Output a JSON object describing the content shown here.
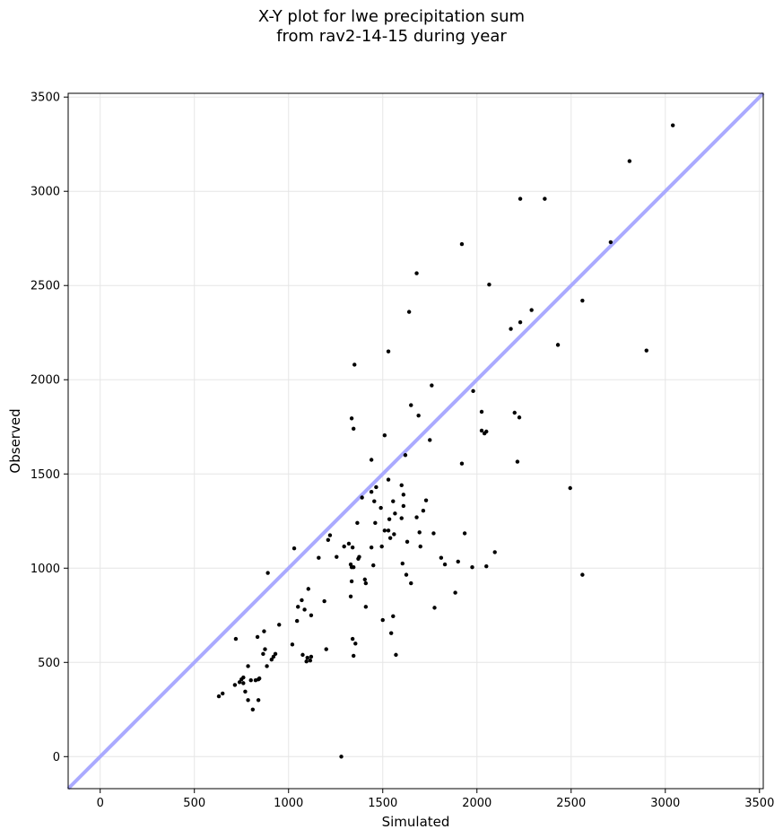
{
  "chart_data": {
    "type": "scatter",
    "title_lines": [
      "X-Y plot for lwe precipitation sum",
      "from rav2-14-15 during year"
    ],
    "xlabel": "Simulated",
    "ylabel": "Observed",
    "xlim": [
      -170,
      3520
    ],
    "ylim": [
      -170,
      3520
    ],
    "xticks": [
      0,
      500,
      1000,
      1500,
      2000,
      2500,
      3000,
      3500
    ],
    "yticks": [
      0,
      500,
      1000,
      1500,
      2000,
      2500,
      3000,
      3500
    ],
    "grid": true,
    "reference_line": {
      "from": [
        -170,
        -170
      ],
      "to": [
        3520,
        3520
      ],
      "color": "#aaaaff"
    },
    "point_color": "#000000",
    "points": [
      [
        3040,
        3350
      ],
      [
        2810,
        3160
      ],
      [
        2230,
        2960
      ],
      [
        2360,
        2960
      ],
      [
        2710,
        2730
      ],
      [
        1920,
        2720
      ],
      [
        1680,
        2565
      ],
      [
        2065,
        2505
      ],
      [
        1640,
        2360
      ],
      [
        2290,
        2370
      ],
      [
        2230,
        2305
      ],
      [
        2180,
        2270
      ],
      [
        2560,
        2420
      ],
      [
        2430,
        2185
      ],
      [
        2900,
        2155
      ],
      [
        1530,
        2150
      ],
      [
        1350,
        2080
      ],
      [
        1760,
        1970
      ],
      [
        1980,
        1940
      ],
      [
        1650,
        1865
      ],
      [
        2200,
        1825
      ],
      [
        2025,
        1830
      ],
      [
        2225,
        1800
      ],
      [
        1690,
        1810
      ],
      [
        1335,
        1795
      ],
      [
        1345,
        1740
      ],
      [
        2025,
        1730
      ],
      [
        2040,
        1715
      ],
      [
        2050,
        1725
      ],
      [
        1510,
        1705
      ],
      [
        1750,
        1680
      ],
      [
        1620,
        1600
      ],
      [
        1440,
        1575
      ],
      [
        1920,
        1555
      ],
      [
        2215,
        1565
      ],
      [
        1530,
        1470
      ],
      [
        2495,
        1425
      ],
      [
        1465,
        1430
      ],
      [
        1600,
        1440
      ],
      [
        1440,
        1405
      ],
      [
        1610,
        1390
      ],
      [
        1555,
        1355
      ],
      [
        1390,
        1375
      ],
      [
        1455,
        1355
      ],
      [
        1730,
        1360
      ],
      [
        1610,
        1330
      ],
      [
        1490,
        1320
      ],
      [
        1715,
        1305
      ],
      [
        1565,
        1290
      ],
      [
        1680,
        1270
      ],
      [
        1600,
        1265
      ],
      [
        1535,
        1260
      ],
      [
        1365,
        1240
      ],
      [
        1460,
        1240
      ],
      [
        1510,
        1200
      ],
      [
        1530,
        1200
      ],
      [
        1560,
        1180
      ],
      [
        1695,
        1190
      ],
      [
        1770,
        1185
      ],
      [
        1935,
        1185
      ],
      [
        1220,
        1175
      ],
      [
        1540,
        1160
      ],
      [
        1210,
        1150
      ],
      [
        1630,
        1140
      ],
      [
        1320,
        1130
      ],
      [
        1295,
        1115
      ],
      [
        1440,
        1110
      ],
      [
        1700,
        1115
      ],
      [
        1495,
        1115
      ],
      [
        1340,
        1110
      ],
      [
        1030,
        1105
      ],
      [
        2095,
        1085
      ],
      [
        1375,
        1060
      ],
      [
        1370,
        1050
      ],
      [
        1255,
        1060
      ],
      [
        1160,
        1055
      ],
      [
        1810,
        1055
      ],
      [
        1900,
        1035
      ],
      [
        1830,
        1020
      ],
      [
        1330,
        1020
      ],
      [
        1450,
        1015
      ],
      [
        1605,
        1025
      ],
      [
        1345,
        1005
      ],
      [
        1335,
        1005
      ],
      [
        1975,
        1005
      ],
      [
        2050,
        1010
      ],
      [
        890,
        975
      ],
      [
        1625,
        965
      ],
      [
        2560,
        965
      ],
      [
        1405,
        940
      ],
      [
        1335,
        930
      ],
      [
        1410,
        920
      ],
      [
        1650,
        920
      ],
      [
        1105,
        890
      ],
      [
        1885,
        870
      ],
      [
        1330,
        850
      ],
      [
        1070,
        830
      ],
      [
        1190,
        825
      ],
      [
        1050,
        795
      ],
      [
        1410,
        795
      ],
      [
        1775,
        790
      ],
      [
        1085,
        780
      ],
      [
        1120,
        750
      ],
      [
        1555,
        745
      ],
      [
        1045,
        720
      ],
      [
        1500,
        725
      ],
      [
        950,
        700
      ],
      [
        870,
        665
      ],
      [
        835,
        635
      ],
      [
        1545,
        655
      ],
      [
        720,
        625
      ],
      [
        1340,
        625
      ],
      [
        1020,
        595
      ],
      [
        1355,
        600
      ],
      [
        1200,
        570
      ],
      [
        875,
        570
      ],
      [
        865,
        545
      ],
      [
        930,
        545
      ],
      [
        920,
        530
      ],
      [
        1075,
        540
      ],
      [
        1120,
        530
      ],
      [
        1345,
        535
      ],
      [
        1570,
        540
      ],
      [
        1100,
        525
      ],
      [
        910,
        515
      ],
      [
        1095,
        505
      ],
      [
        1115,
        510
      ],
      [
        885,
        480
      ],
      [
        785,
        480
      ],
      [
        800,
        405
      ],
      [
        750,
        410
      ],
      [
        760,
        420
      ],
      [
        845,
        415
      ],
      [
        840,
        410
      ],
      [
        825,
        405
      ],
      [
        740,
        395
      ],
      [
        760,
        390
      ],
      [
        715,
        380
      ],
      [
        770,
        345
      ],
      [
        650,
        335
      ],
      [
        630,
        320
      ],
      [
        785,
        300
      ],
      [
        840,
        300
      ],
      [
        810,
        250
      ],
      [
        1280,
        0
      ]
    ]
  }
}
